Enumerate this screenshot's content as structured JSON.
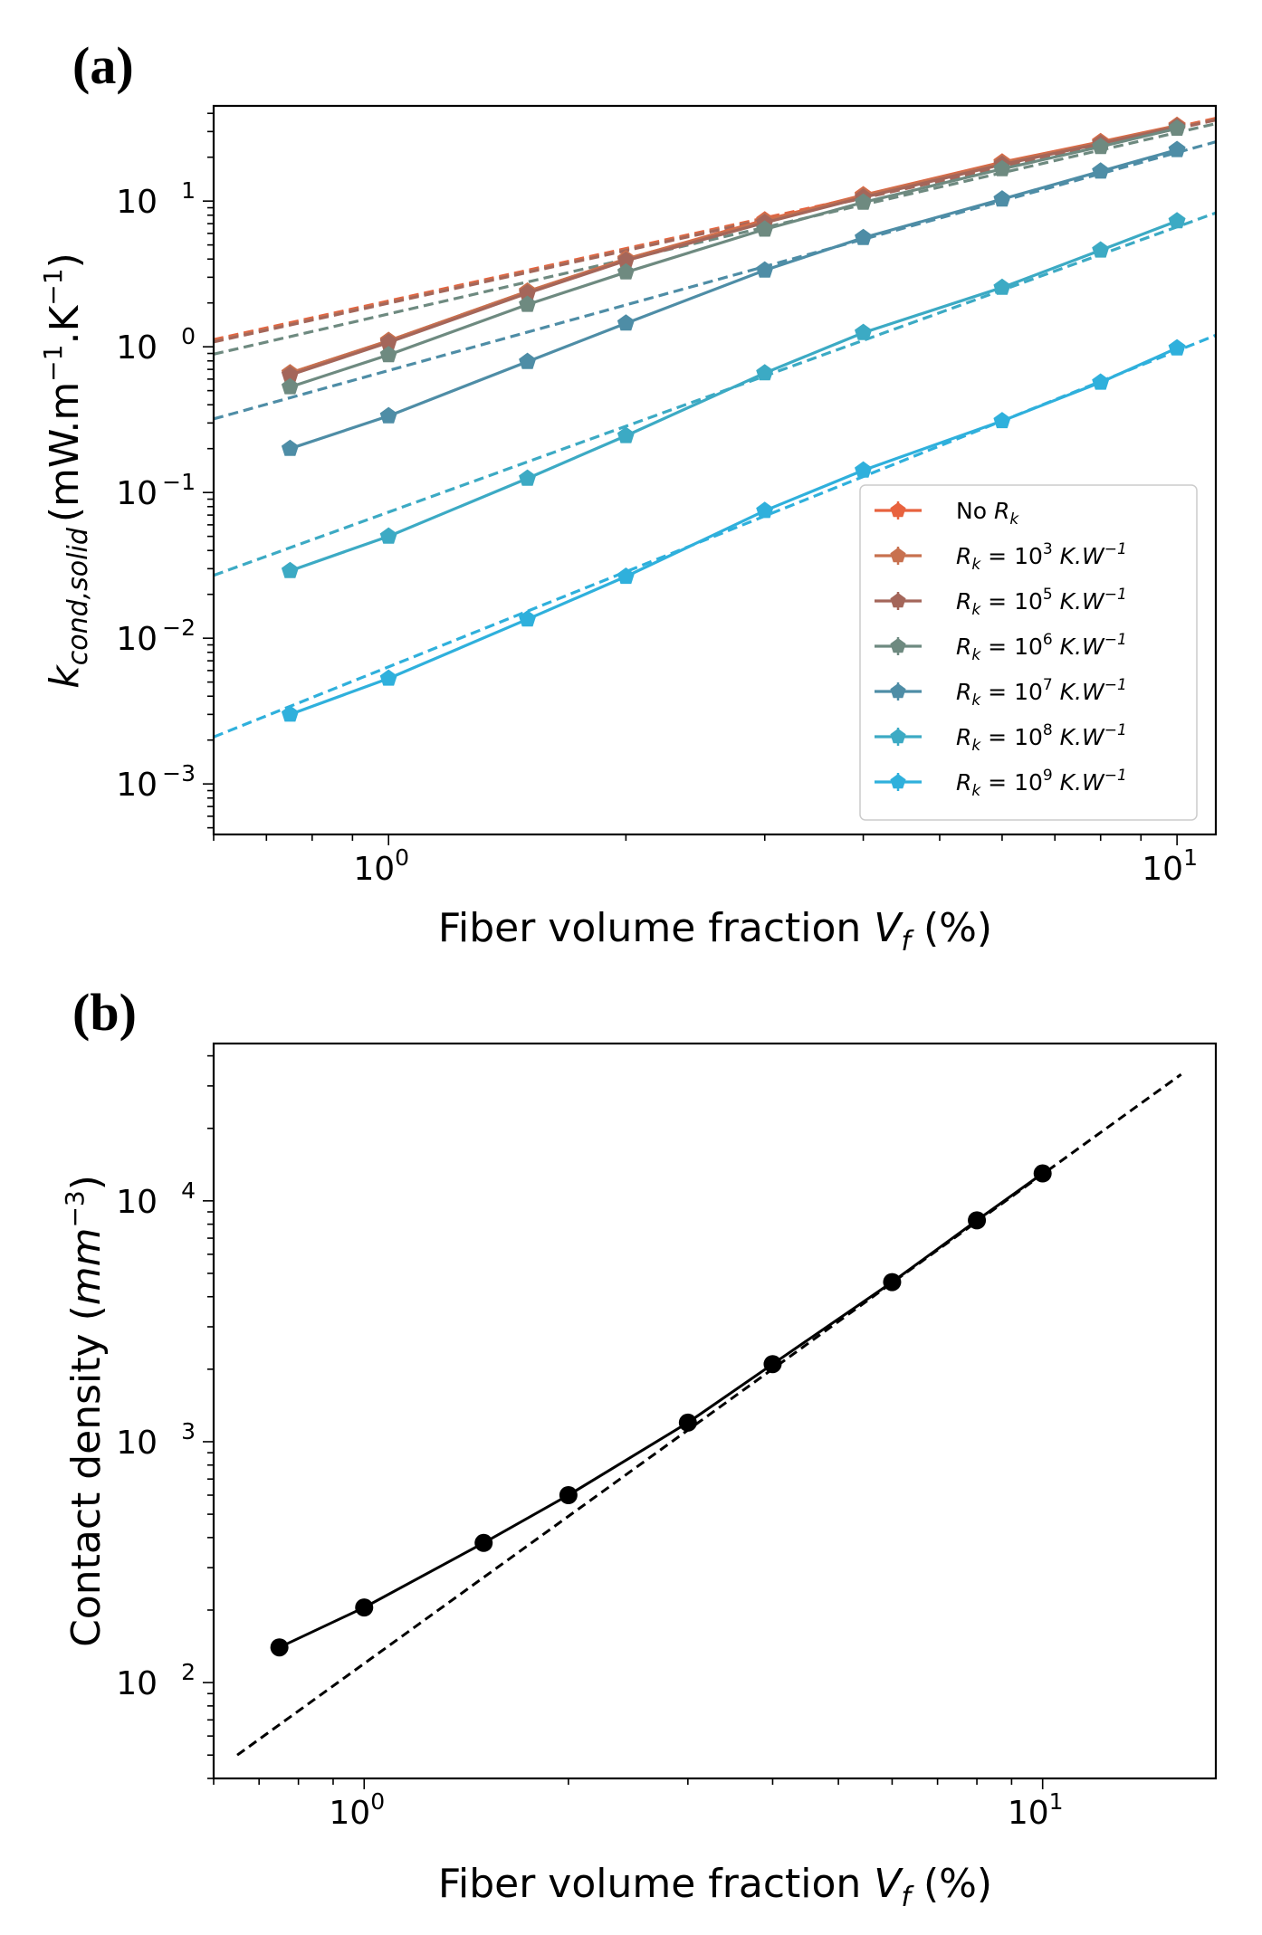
{
  "chart_data": [
    {
      "panel": "(a)",
      "type": "line",
      "scale": "log-log",
      "xlabel": "Fiber volume fraction V_f (%)",
      "xlabel_parts": {
        "main": "Fiber volume fraction ",
        "var": "V",
        "sub": "f",
        "tail": " (%)"
      },
      "ylabel": "k_cond,solid (mW.m^-1.K^-1)",
      "ylabel_parts": {
        "var": "k",
        "sub": "cond,solid",
        "unit": "(mW.m",
        "exp1": "−1",
        "mid": ".K",
        "exp2": "−1",
        "close": ")"
      },
      "xlim": [
        0.6,
        11.2
      ],
      "ylim": [
        0.00045,
        45
      ],
      "xticks": [
        {
          "value": 1,
          "base": "10",
          "exp": "0"
        },
        {
          "value": 10,
          "base": "10",
          "exp": "1"
        }
      ],
      "yticks": [
        {
          "value": 0.001,
          "base": "10",
          "exp": "−3"
        },
        {
          "value": 0.01,
          "base": "10",
          "exp": "−2"
        },
        {
          "value": 0.1,
          "base": "10",
          "exp": "−1"
        },
        {
          "value": 1,
          "base": "10",
          "exp": "0"
        },
        {
          "value": 10,
          "base": "10",
          "exp": "1"
        }
      ],
      "x": [
        0.75,
        1.0,
        1.5,
        2.0,
        3.0,
        4.0,
        6.0,
        8.0,
        10.0
      ],
      "series": [
        {
          "name": "No R_k",
          "label_main": "No ",
          "label_var": "R",
          "label_sub": "k",
          "label_exp": "",
          "color": "#e8623e",
          "values": [
            0.66,
            1.1,
            2.4,
            4.0,
            7.4,
            11.0,
            18.5,
            25.5,
            33.0
          ],
          "fit": {
            "x": [
              0.6,
              11.2
            ],
            "y": [
              1.12,
              37.0
            ]
          }
        },
        {
          "name": "R_k = 10^3 K.W^-1",
          "label_var": "R",
          "label_sub": "k",
          "label_eq": " = 10",
          "label_exp": "3",
          "label_unit": " K.W",
          "label_unit_exp": "−1",
          "color": "#c8714f",
          "values": [
            0.66,
            1.1,
            2.4,
            4.0,
            7.3,
            10.9,
            18.3,
            25.3,
            32.8
          ],
          "fit": {
            "x": [
              0.6,
              11.2
            ],
            "y": [
              1.1,
              36.5
            ]
          }
        },
        {
          "name": "R_k = 10^5 K.W^-1",
          "label_var": "R",
          "label_sub": "k",
          "label_eq": " = 10",
          "label_exp": "5",
          "label_unit": " K.W",
          "label_unit_exp": "−1",
          "color": "#a4665a",
          "values": [
            0.64,
            1.07,
            2.33,
            3.9,
            7.1,
            10.6,
            17.8,
            24.8,
            32.3
          ],
          "fit": {
            "x": [
              0.6,
              11.2
            ],
            "y": [
              1.08,
              36.0
            ]
          }
        },
        {
          "name": "R_k = 10^6 K.W^-1",
          "label_var": "R",
          "label_sub": "k",
          "label_eq": " = 10",
          "label_exp": "6",
          "label_unit": " K.W",
          "label_unit_exp": "−1",
          "color": "#6e8a80",
          "values": [
            0.53,
            0.88,
            1.95,
            3.25,
            6.4,
            9.8,
            16.6,
            23.6,
            31.5
          ],
          "fit": {
            "x": [
              0.6,
              11.2
            ],
            "y": [
              0.89,
              34.0
            ]
          }
        },
        {
          "name": "R_k = 10^7 K.W^-1",
          "label_var": "R",
          "label_sub": "k",
          "label_eq": " = 10",
          "label_exp": "7",
          "label_unit": " K.W",
          "label_unit_exp": "−1",
          "color": "#4e8da6",
          "values": [
            0.2,
            0.335,
            0.79,
            1.45,
            3.35,
            5.6,
            10.3,
            16.0,
            22.5
          ],
          "fit": {
            "x": [
              0.6,
              11.2
            ],
            "y": [
              0.32,
              25.5
            ]
          }
        },
        {
          "name": "R_k = 10^8 K.W^-1",
          "label_var": "R",
          "label_sub": "k",
          "label_eq": " = 10",
          "label_exp": "8",
          "label_unit": " K.W",
          "label_unit_exp": "−1",
          "color": "#3caac4",
          "values": [
            0.029,
            0.05,
            0.125,
            0.245,
            0.66,
            1.25,
            2.55,
            4.6,
            7.3
          ],
          "fit": {
            "x": [
              0.6,
              11.2
            ],
            "y": [
              0.027,
              8.3
            ]
          }
        },
        {
          "name": "R_k = 10^9 K.W^-1",
          "label_var": "R",
          "label_sub": "k",
          "label_eq": " = 10",
          "label_exp": "9",
          "label_unit": " K.W",
          "label_unit_exp": "−1",
          "color": "#2fb0dc",
          "values": [
            0.003,
            0.0053,
            0.0135,
            0.0265,
            0.075,
            0.142,
            0.31,
            0.57,
            0.98
          ],
          "fit": {
            "x": [
              0.6,
              11.2
            ],
            "y": [
              0.0021,
              1.2
            ]
          }
        }
      ],
      "legend_position": "lower-right"
    },
    {
      "panel": "(b)",
      "type": "line",
      "scale": "log-log",
      "xlabel": "Fiber volume fraction V_f (%)",
      "xlabel_parts": {
        "main": "Fiber volume fraction ",
        "var": "V",
        "sub": "f",
        "tail": " (%)"
      },
      "ylabel": "Contact density (mm^-3)",
      "ylabel_parts": {
        "main": "Contact density (",
        "var": "mm",
        "exp": "−3",
        "close": ")"
      },
      "xlim": [
        0.6,
        18.0
      ],
      "ylim": [
        40,
        45000
      ],
      "xticks": [
        {
          "value": 1,
          "base": "10",
          "exp": "0"
        },
        {
          "value": 10,
          "base": "10",
          "exp": "1"
        }
      ],
      "yticks": [
        {
          "value": 100,
          "base": "10",
          "exp": "2"
        },
        {
          "value": 1000,
          "base": "10",
          "exp": "3"
        },
        {
          "value": 10000,
          "base": "10",
          "exp": "4"
        }
      ],
      "x": [
        0.75,
        1.0,
        1.5,
        2.0,
        3.0,
        4.0,
        6.0,
        8.0,
        10.0
      ],
      "values": [
        140,
        205,
        380,
        600,
        1200,
        2100,
        4600,
        8300,
        13000
      ],
      "color": "#000000",
      "fit": {
        "x": [
          0.65,
          16.0
        ],
        "y": [
          50,
          33500
        ]
      }
    }
  ]
}
